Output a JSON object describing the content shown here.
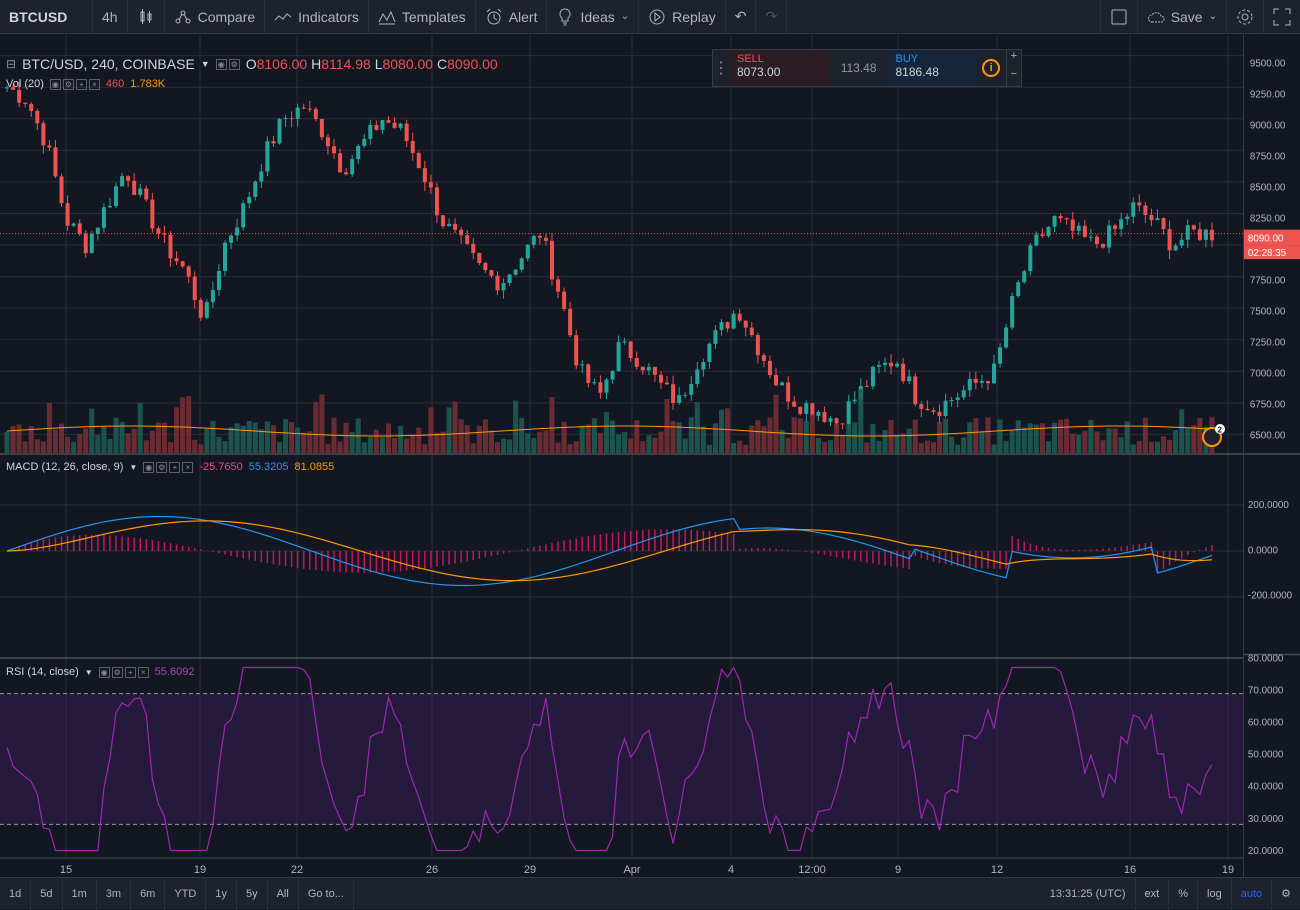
{
  "toolbar": {
    "symbol": "BTCUSD",
    "interval": "4h",
    "compare": "Compare",
    "indicators": "Indicators",
    "templates": "Templates",
    "alert": "Alert",
    "ideas": "Ideas",
    "replay": "Replay",
    "save": "Save"
  },
  "legend": {
    "symbol": "BTC/USD, 240, COINBASE",
    "o_label": "O",
    "o": "8106.00",
    "h_label": "H",
    "h": "8114.98",
    "l_label": "L",
    "l": "8080.00",
    "c_label": "C",
    "c": "8090.00",
    "vol_label": "Vol (20)",
    "vol_value": "460",
    "vol_ma": "1.783K",
    "macd_label": "MACD (12, 26, close, 9)",
    "macd_hist": "-25.7650",
    "macd_line": "55.3205",
    "macd_signal": "81.0855",
    "rsi_label": "RSI (14, close)",
    "rsi_value": "55.6092"
  },
  "trade": {
    "sell_label": "SELL",
    "sell_price": "8073.00",
    "spread": "113.48",
    "buy_label": "BUY",
    "buy_price": "8186.48"
  },
  "price_scale": [
    "9500.00",
    "9250.00",
    "9000.00",
    "8750.00",
    "8500.00",
    "8250.00",
    "8000.00",
    "7750.00",
    "7500.00",
    "7250.00",
    "7000.00",
    "6750.00",
    "6500.00"
  ],
  "last_price": "8090.00",
  "countdown": "02:28:35",
  "event_badge": "2",
  "macd_scale": [
    "200.0000",
    "0.0000",
    "-200.0000"
  ],
  "rsi_scale": [
    "80.0000",
    "70.0000",
    "60.0000",
    "50.0000",
    "40.0000",
    "30.0000",
    "20.0000"
  ],
  "time_axis": [
    "15",
    "19",
    "22",
    "26",
    "29",
    "Apr",
    "4",
    "12:00",
    "9",
    "12",
    "16",
    "19"
  ],
  "bottom": {
    "ranges": [
      "1d",
      "5d",
      "1m",
      "3m",
      "6m",
      "YTD",
      "1y",
      "5y",
      "All"
    ],
    "goto": "Go to...",
    "clock": "13:31:25 (UTC)",
    "ext": "ext",
    "pct": "%",
    "log": "log",
    "auto": "auto"
  },
  "colors": {
    "up": "#26a69a",
    "down": "#ef5350",
    "macd": "#2196f3",
    "signal": "#ff9800",
    "rsi": "#9c27b0",
    "bg": "#131722"
  },
  "chart_data": {
    "type": "candlestick",
    "series": [
      {
        "name": "BTC/USD",
        "close_path": [
          9250,
          9150,
          8800,
          8200,
          8000,
          8300,
          8600,
          8300,
          8000,
          7800,
          7400,
          8000,
          8300,
          8700,
          9000,
          9100,
          8900,
          8600,
          8800,
          9000,
          8900,
          8600,
          8200,
          8000,
          7800,
          7700,
          7900,
          8100,
          7600,
          7000,
          6800,
          7200,
          7100,
          6900,
          6750,
          7100,
          7300,
          7500,
          7200,
          6900,
          6750,
          6700,
          6600,
          6800,
          7000,
          7100,
          6800,
          6700,
          6800,
          6900,
          7000,
          7600,
          8000,
          8200,
          8100,
          8000,
          8100,
          8300,
          8200,
          8000,
          8100,
          8090
        ]
      }
    ],
    "ylim": [
      6400,
      9600
    ]
  }
}
